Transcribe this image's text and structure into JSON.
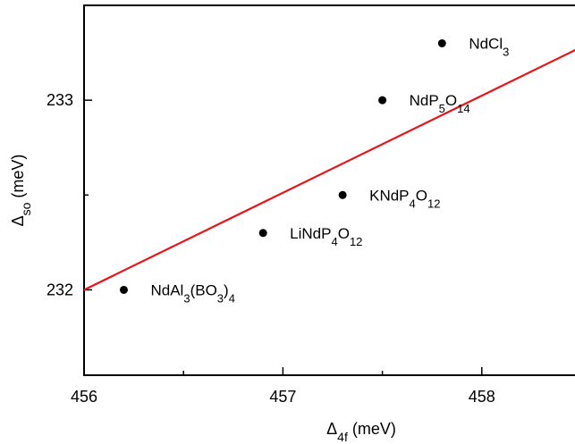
{
  "chart_data": {
    "type": "scatter",
    "title": "",
    "xlabel": {
      "symbol": "Δ",
      "sub": "4f",
      "unit": " (meV)"
    },
    "ylabel": {
      "symbol": "Δ",
      "sub": "so",
      "unit": " (meV)"
    },
    "xlim": [
      456,
      458.5
    ],
    "ylim": [
      231.55,
      233.5
    ],
    "x_ticks": [
      456,
      457,
      458
    ],
    "x_tick_labels": [
      "456",
      "457",
      "458"
    ],
    "y_ticks": [
      232,
      233
    ],
    "y_tick_labels": [
      "232",
      "233"
    ],
    "grid": false,
    "legend": "none",
    "point_color": "#000000",
    "fit_color": "#e8141a",
    "points": [
      {
        "name": "NdAl3(BO3)4",
        "x": 456.2,
        "y": 232.0,
        "label": [
          [
            "Nd",
            ""
          ],
          [
            "Al",
            ""
          ],
          [
            "3",
            "sub"
          ],
          [
            "(BO",
            ""
          ],
          [
            "3",
            "sub"
          ],
          [
            ")",
            ""
          ],
          [
            "4",
            "sub"
          ]
        ]
      },
      {
        "name": "LiNdP4O12",
        "x": 456.9,
        "y": 232.3,
        "label": [
          [
            "LiNdP",
            ""
          ],
          [
            "4",
            "sub"
          ],
          [
            "O",
            ""
          ],
          [
            "12",
            "sub"
          ]
        ]
      },
      {
        "name": "KNdP4O12",
        "x": 457.3,
        "y": 232.5,
        "label": [
          [
            "KNdP",
            ""
          ],
          [
            "4",
            "sub"
          ],
          [
            "O",
            ""
          ],
          [
            "12",
            "sub"
          ]
        ]
      },
      {
        "name": "NdP5O14",
        "x": 457.5,
        "y": 233.0,
        "label": [
          [
            "NdP",
            ""
          ],
          [
            "5",
            "sub"
          ],
          [
            "O",
            ""
          ],
          [
            "14",
            "sub"
          ]
        ]
      },
      {
        "name": "NdCl3",
        "x": 457.8,
        "y": 233.3,
        "label": [
          [
            "NdCl",
            ""
          ],
          [
            "3",
            "sub"
          ]
        ]
      }
    ],
    "fit_line": {
      "x": [
        456,
        458.5
      ],
      "y": [
        232.0,
        233.28
      ]
    }
  }
}
